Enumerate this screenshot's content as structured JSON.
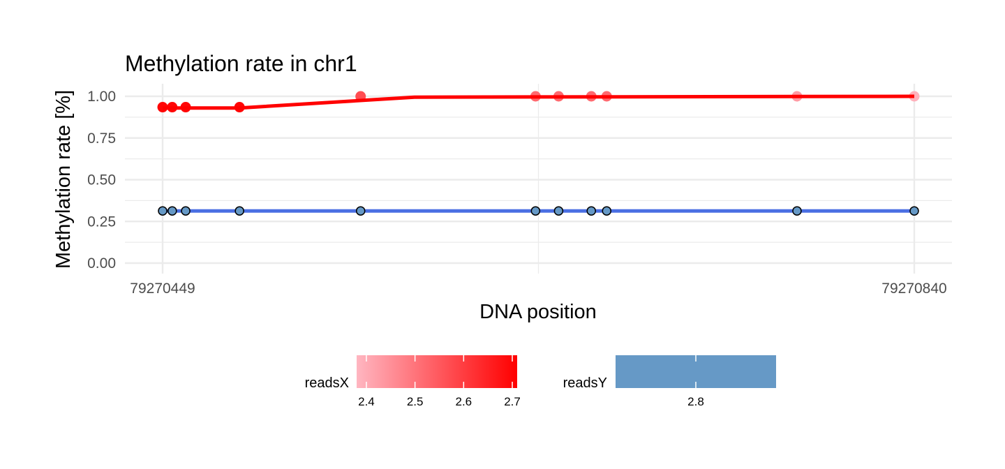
{
  "chart_data": {
    "type": "line",
    "title": "Methylation rate in chr1",
    "xlabel": "DNA position",
    "ylabel": "Methylation rate [%]",
    "xlim": [
      79270449,
      79270840
    ],
    "ylim": [
      0,
      1.0
    ],
    "x_ticks": [
      79270449,
      79270840
    ],
    "x_tick_labels": [
      "79270449",
      "79270840"
    ],
    "x_minor_gridlines": [
      79270644.5
    ],
    "y_ticks": [
      0.0,
      0.25,
      0.5,
      0.75,
      1.0
    ],
    "y_tick_labels": [
      "0.00",
      "0.25",
      "0.50",
      "0.75",
      "1.00"
    ],
    "grid": true,
    "legend_position": "bottom",
    "series": [
      {
        "name": "readsX",
        "color": "#ff0000",
        "line": [
          {
            "x": 79270449,
            "y": 0.93
          },
          {
            "x": 79270489,
            "y": 0.93
          },
          {
            "x": 79270580,
            "y": 0.995
          },
          {
            "x": 79270840,
            "y": 1.0
          }
        ],
        "points": [
          {
            "x": 79270449,
            "y": 0.935,
            "value": 2.7
          },
          {
            "x": 79270454,
            "y": 0.935,
            "value": 2.7
          },
          {
            "x": 79270461,
            "y": 0.935,
            "value": 2.7
          },
          {
            "x": 79270489,
            "y": 0.935,
            "value": 2.7
          },
          {
            "x": 79270552,
            "y": 1.0,
            "value": 2.57
          },
          {
            "x": 79270643,
            "y": 1.0,
            "value": 2.52
          },
          {
            "x": 79270655,
            "y": 1.0,
            "value": 2.52
          },
          {
            "x": 79270672,
            "y": 1.0,
            "value": 2.52
          },
          {
            "x": 79270680,
            "y": 1.0,
            "value": 2.52
          },
          {
            "x": 79270779,
            "y": 1.0,
            "value": 2.43
          },
          {
            "x": 79270840,
            "y": 1.0,
            "value": 2.39
          }
        ]
      },
      {
        "name": "readsY",
        "color": "#4a6fe3",
        "line": [
          {
            "x": 79270449,
            "y": 0.313
          },
          {
            "x": 79270840,
            "y": 0.313
          }
        ],
        "points": [
          {
            "x": 79270449,
            "y": 0.313
          },
          {
            "x": 79270454,
            "y": 0.313
          },
          {
            "x": 79270461,
            "y": 0.313
          },
          {
            "x": 79270489,
            "y": 0.313
          },
          {
            "x": 79270552,
            "y": 0.313
          },
          {
            "x": 79270643,
            "y": 0.313
          },
          {
            "x": 79270655,
            "y": 0.313
          },
          {
            "x": 79270672,
            "y": 0.313
          },
          {
            "x": 79270680,
            "y": 0.313
          },
          {
            "x": 79270779,
            "y": 0.313
          },
          {
            "x": 79270840,
            "y": 0.313
          }
        ]
      }
    ],
    "legends": [
      {
        "title": "readsX",
        "type": "gradient",
        "colors": [
          "#ffb6c1",
          "#ff0000"
        ],
        "range": [
          2.38,
          2.71
        ],
        "ticks": [
          2.4,
          2.5,
          2.6,
          2.7
        ],
        "tick_labels": [
          "2.4",
          "2.5",
          "2.6",
          "2.7"
        ]
      },
      {
        "title": "readsY",
        "type": "gradient",
        "colors": [
          "#6699c6",
          "#6699c6"
        ],
        "range": [
          2.7,
          2.9
        ],
        "ticks": [
          2.8
        ],
        "tick_labels": [
          "2.8"
        ]
      }
    ],
    "point_fill_readsY": "#6699c6",
    "point_stroke_readsY": "#000000"
  }
}
